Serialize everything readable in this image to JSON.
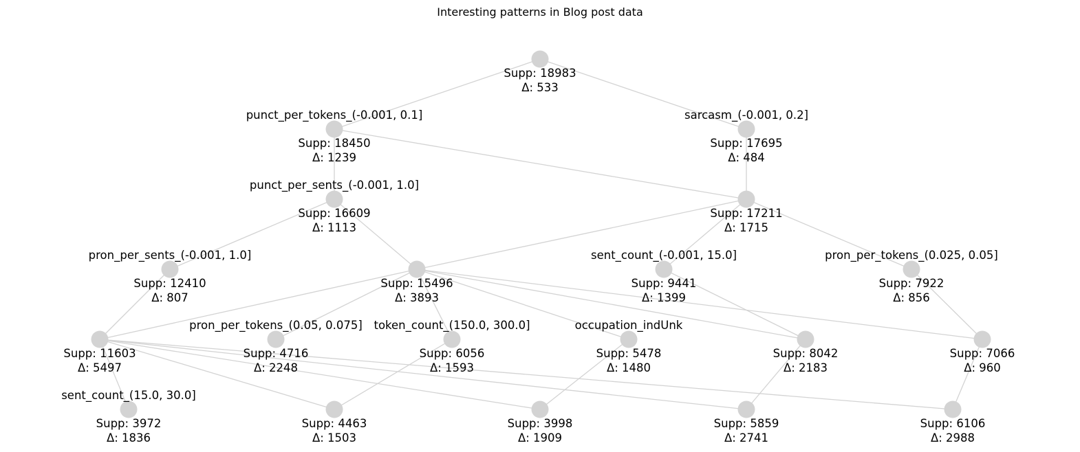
{
  "title": "Interesting patterns in Blog post data",
  "colors": {
    "node": "#d3d3d3",
    "edge": "#d3d3d3",
    "text": "#000000"
  },
  "nodes": [
    {
      "id": "root",
      "name": "",
      "supp": "Supp: 18983",
      "delta": "Δ: 533"
    },
    {
      "id": "n1",
      "name": "punct_per_tokens_(-0.001, 0.1]",
      "supp": "Supp: 18450",
      "delta": "Δ: 1239"
    },
    {
      "id": "n2",
      "name": "sarcasm_(-0.001, 0.2]",
      "supp": "Supp: 17695",
      "delta": "Δ: 484"
    },
    {
      "id": "n3",
      "name": "punct_per_sents_(-0.001, 1.0]",
      "supp": "Supp: 16609",
      "delta": "Δ: 1113"
    },
    {
      "id": "n4",
      "name": "",
      "supp": "Supp: 17211",
      "delta": "Δ: 1715"
    },
    {
      "id": "n5",
      "name": "pron_per_sents_(-0.001, 1.0]",
      "supp": "Supp: 12410",
      "delta": "Δ: 807"
    },
    {
      "id": "n6",
      "name": "",
      "supp": "Supp: 15496",
      "delta": "Δ: 3893"
    },
    {
      "id": "n7",
      "name": "sent_count_(-0.001, 15.0]",
      "supp": "Supp: 9441",
      "delta": "Δ: 1399"
    },
    {
      "id": "n8",
      "name": "pron_per_tokens_(0.025, 0.05]",
      "supp": "Supp: 7922",
      "delta": "Δ: 856"
    },
    {
      "id": "n9",
      "name": "",
      "supp": "Supp: 11603",
      "delta": "Δ: 5497"
    },
    {
      "id": "n10",
      "name": "pron_per_tokens_(0.05, 0.075]",
      "supp": "Supp: 4716",
      "delta": "Δ: 2248"
    },
    {
      "id": "n11",
      "name": "token_count_(150.0, 300.0]",
      "supp": "Supp: 6056",
      "delta": "Δ: 1593"
    },
    {
      "id": "n12",
      "name": "occupation_indUnk",
      "supp": "Supp: 5478",
      "delta": "Δ: 1480"
    },
    {
      "id": "n13",
      "name": "",
      "supp": "Supp: 8042",
      "delta": "Δ: 2183"
    },
    {
      "id": "n14",
      "name": "",
      "supp": "Supp: 7066",
      "delta": "Δ: 960"
    },
    {
      "id": "n15",
      "name": "sent_count_(15.0, 30.0]",
      "supp": "Supp: 3972",
      "delta": "Δ: 1836"
    },
    {
      "id": "n16",
      "name": "",
      "supp": "Supp: 4463",
      "delta": "Δ: 1503"
    },
    {
      "id": "n17",
      "name": "",
      "supp": "Supp: 3998",
      "delta": "Δ: 1909"
    },
    {
      "id": "n18",
      "name": "",
      "supp": "Supp: 5859",
      "delta": "Δ: 2741"
    },
    {
      "id": "n19",
      "name": "",
      "supp": "Supp: 6106",
      "delta": "Δ: 2988"
    }
  ],
  "edges": [
    [
      "root",
      "n1"
    ],
    [
      "root",
      "n2"
    ],
    [
      "n1",
      "n3"
    ],
    [
      "n1",
      "n4"
    ],
    [
      "n2",
      "n4"
    ],
    [
      "n3",
      "n5"
    ],
    [
      "n3",
      "n6"
    ],
    [
      "n4",
      "n6"
    ],
    [
      "n4",
      "n7"
    ],
    [
      "n4",
      "n8"
    ],
    [
      "n5",
      "n9"
    ],
    [
      "n6",
      "n9"
    ],
    [
      "n6",
      "n10"
    ],
    [
      "n6",
      "n11"
    ],
    [
      "n6",
      "n12"
    ],
    [
      "n6",
      "n13"
    ],
    [
      "n6",
      "n14"
    ],
    [
      "n7",
      "n13"
    ],
    [
      "n8",
      "n14"
    ],
    [
      "n9",
      "n15"
    ],
    [
      "n9",
      "n16"
    ],
    [
      "n9",
      "n17"
    ],
    [
      "n9",
      "n18"
    ],
    [
      "n9",
      "n19"
    ],
    [
      "n11",
      "n16"
    ],
    [
      "n12",
      "n17"
    ],
    [
      "n13",
      "n18"
    ],
    [
      "n14",
      "n19"
    ]
  ]
}
